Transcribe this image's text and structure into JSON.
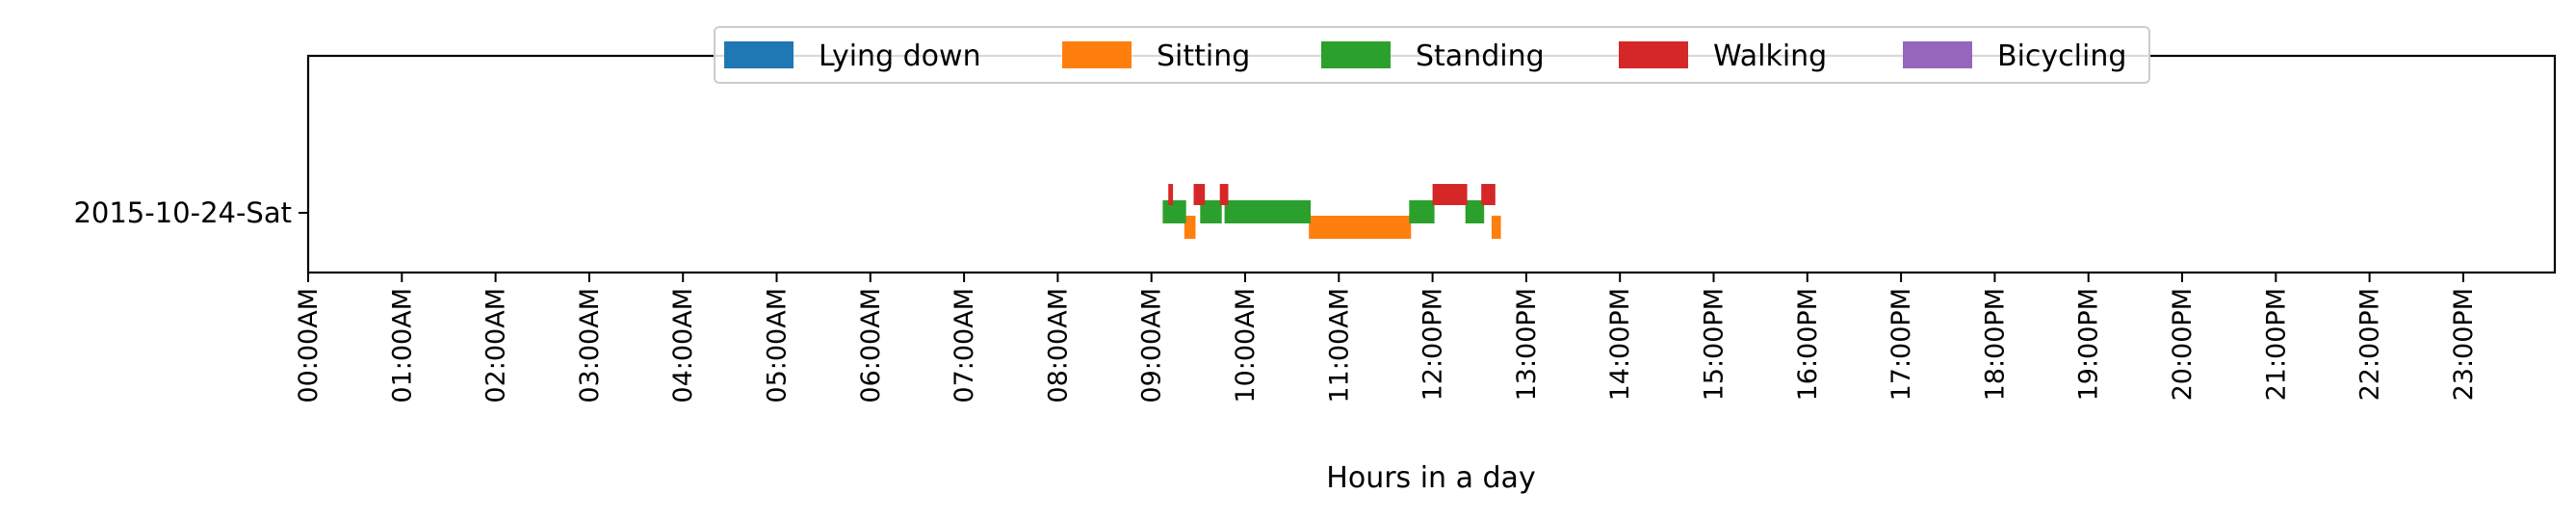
{
  "chart_data": {
    "type": "bar",
    "orientation": "horizontal-timeline",
    "xlabel": "Hours in a day",
    "ylabel": "",
    "xlim": [
      0,
      24
    ],
    "x_tick_labels": [
      "00:00AM",
      "01:00AM",
      "02:00AM",
      "03:00AM",
      "04:00AM",
      "05:00AM",
      "06:00AM",
      "07:00AM",
      "08:00AM",
      "09:00AM",
      "10:00AM",
      "11:00AM",
      "12:00PM",
      "13:00PM",
      "14:00PM",
      "15:00PM",
      "16:00PM",
      "17:00PM",
      "18:00PM",
      "19:00PM",
      "20:00PM",
      "21:00PM",
      "22:00PM",
      "23:00PM"
    ],
    "y_categories": [
      "2015-10-24-Sat"
    ],
    "legend_position": "top-center",
    "grid": false,
    "series": [
      {
        "name": "Lying down",
        "color": "#1f77b4",
        "segments": []
      },
      {
        "name": "Sitting",
        "color": "#ff7f0e",
        "segments": [
          [
            9.35,
            9.47
          ],
          [
            10.68,
            11.77
          ],
          [
            12.63,
            12.73
          ]
        ]
      },
      {
        "name": "Standing",
        "color": "#2ca02c",
        "segments": [
          [
            9.12,
            9.37
          ],
          [
            9.52,
            9.75
          ],
          [
            9.78,
            10.7
          ],
          [
            11.75,
            12.02
          ],
          [
            12.35,
            12.55
          ]
        ]
      },
      {
        "name": "Walking",
        "color": "#d62728",
        "segments": [
          [
            9.18,
            9.23
          ],
          [
            9.45,
            9.57
          ],
          [
            9.73,
            9.82
          ],
          [
            12.0,
            12.37
          ],
          [
            12.52,
            12.67
          ]
        ]
      },
      {
        "name": "Bicycling",
        "color": "#9467bd",
        "segments": []
      }
    ]
  }
}
